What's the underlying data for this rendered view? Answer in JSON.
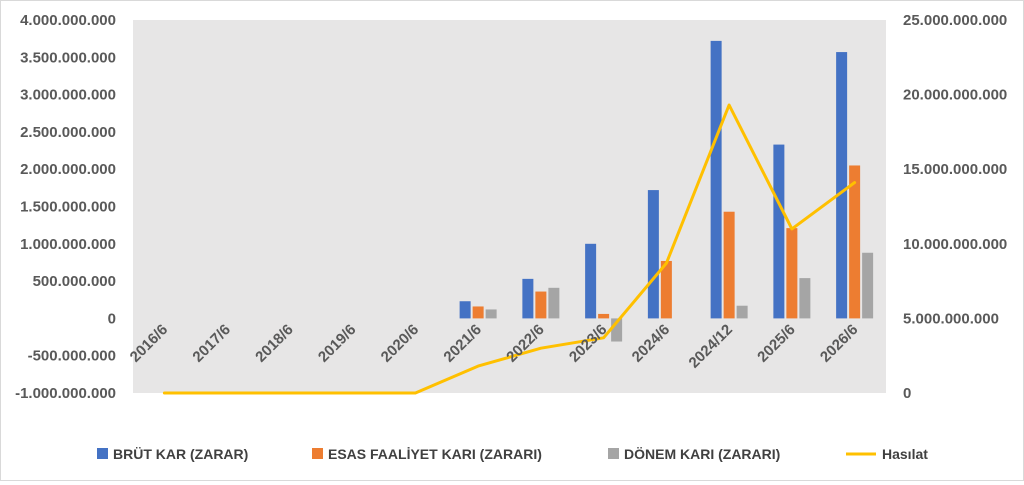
{
  "chart_data": {
    "type": "bar",
    "categories": [
      "2016/6",
      "2017/6",
      "2018/6",
      "2019/6",
      "2020/6",
      "2021/6",
      "2022/6",
      "2023/6",
      "2024/6",
      "2024/12",
      "2025/6",
      "2026/6"
    ],
    "series": [
      {
        "name": "BRÜT KAR (ZARAR)",
        "axis": "left",
        "type": "bar",
        "color": "#4472C4",
        "values": [
          0,
          0,
          0,
          0,
          0,
          230000000,
          530000000,
          1000000000,
          1720000000,
          3720000000,
          2330000000,
          3570000000
        ]
      },
      {
        "name": "ESAS FAALİYET KARI (ZARARI)",
        "axis": "left",
        "type": "bar",
        "color": "#ED7D31",
        "values": [
          0,
          0,
          0,
          0,
          0,
          160000000,
          360000000,
          60000000,
          770000000,
          1430000000,
          1210000000,
          2050000000
        ]
      },
      {
        "name": "DÖNEM KARI (ZARARI)",
        "axis": "left",
        "type": "bar",
        "color": "#A5A5A5",
        "values": [
          0,
          0,
          0,
          0,
          0,
          120000000,
          410000000,
          -310000000,
          0,
          170000000,
          540000000,
          880000000
        ]
      },
      {
        "name": "Hasılat",
        "axis": "right",
        "type": "line",
        "color": "#FFC000",
        "values": [
          0,
          0,
          0,
          0,
          0,
          1800000000,
          3000000000,
          3700000000,
          8700000000,
          19300000000,
          11000000000,
          14100000000
        ]
      }
    ],
    "left_axis": {
      "ylim": [
        -1000000000,
        4000000000
      ],
      "ticks": [
        -1000000000,
        -500000000,
        0,
        500000000,
        1000000000,
        1500000000,
        2000000000,
        2500000000,
        3000000000,
        3500000000,
        4000000000
      ],
      "tick_labels": [
        "-1.000.000.000",
        "-500.000.000",
        "0",
        "500.000.000",
        "1.000.000.000",
        "1.500.000.000",
        "2.000.000.000",
        "2.500.000.000",
        "3.000.000.000",
        "3.500.000.000",
        "4.000.000.000"
      ]
    },
    "right_axis": {
      "ylim": [
        0,
        25000000000
      ],
      "ticks": [
        0,
        5000000000,
        10000000000,
        15000000000,
        20000000000,
        25000000000
      ],
      "tick_labels": [
        "0",
        "5.000.000.000",
        "10.000.000.000",
        "15.000.000.000",
        "20.000.000.000",
        "25.000.000.000"
      ]
    },
    "title": "",
    "xlabel": "",
    "ylabel": "",
    "grid": false,
    "plot_background": "#e7e6e6",
    "legend_position": "bottom"
  }
}
